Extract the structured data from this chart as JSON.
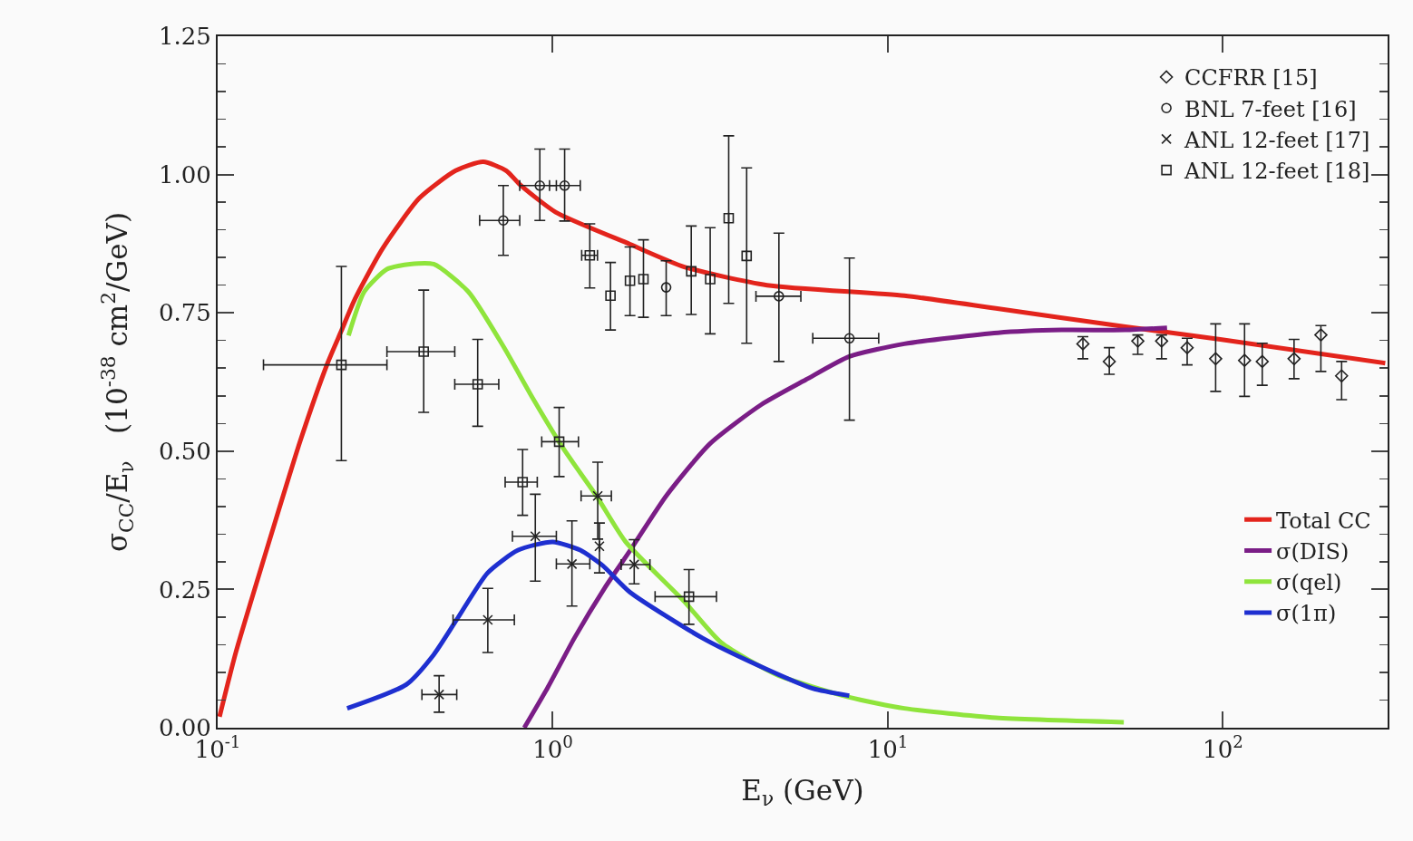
{
  "chart_data": {
    "type": "line",
    "xlabel": "E$_{ν}$ (GeV)",
    "ylabel": "σ$_{CC}$/E$_{ν}$   (10$^{-38}$ cm$^{2}$/GeV)",
    "log": "x",
    "grid": false,
    "legend": "right",
    "line_style": "solid",
    "xlim": [
      0.1,
      310
    ],
    "xticks": [
      {
        "value": 0.1,
        "label": "10$^{-1}$"
      },
      {
        "value": 1,
        "label": "10$^{0}$"
      },
      {
        "value": 10,
        "label": "10$^{1}$"
      },
      {
        "value": 100,
        "label": "10$^{2}$"
      }
    ],
    "ylim": [
      0,
      1.25
    ],
    "yticks": [
      {
        "value": 0,
        "label": "0.00"
      },
      0.25,
      {
        "value": 0.5,
        "label": "0.50"
      },
      0.75,
      {
        "value": 1,
        "label": "1.00"
      },
      1.25
    ],
    "series": [
      {
        "type": "scatter",
        "name": "CCFRR [15]",
        "color": "#222222",
        "marker": "diamond",
        "x": [
          38.2,
          45.8,
          55.7,
          65.6,
          78.2,
          95.1,
          116,
          131,
          163,
          196,
          226
        ],
        "values": [
          0.694,
          0.662,
          0.699,
          0.699,
          0.687,
          0.667,
          0.664,
          0.662,
          0.667,
          0.71,
          0.636
        ],
        "errors": [
          [
            0.667,
            0.707
          ],
          [
            0.639,
            0.687
          ],
          [
            0.675,
            0.71
          ],
          [
            0.667,
            0.71
          ],
          [
            0.656,
            0.704
          ],
          [
            0.608,
            0.73
          ],
          [
            0.599,
            0.73
          ],
          [
            0.619,
            0.695
          ],
          [
            0.631,
            0.702
          ],
          [
            0.644,
            0.727
          ],
          [
            0.593,
            0.662
          ]
        ]
      },
      {
        "type": "scatter",
        "name": "BNL 7-feet [16]",
        "color": "#222222",
        "marker": "circle",
        "x": [
          0.712,
          0.915,
          1.085,
          2.18,
          4.73,
          7.68
        ],
        "values": [
          0.917,
          0.98,
          0.98,
          0.796,
          0.78,
          0.704
        ],
        "errors": [
          [
            0.854,
            0.98
          ],
          [
            0.917,
            1.046
          ],
          [
            0.916,
            1.046
          ],
          [
            0.745,
            0.844
          ],
          [
            0.662,
            0.894
          ],
          [
            0.556,
            0.849
          ]
        ],
        "xerrors": [
          [
            0.605,
            0.797
          ],
          [
            0.797,
            1.025
          ],
          [
            0.978,
            1.208
          ],
          null,
          [
            4.04,
            5.5
          ],
          [
            5.97,
            9.39
          ]
        ]
      },
      {
        "type": "scatter",
        "name": "ANL 12-feet [17]",
        "color": "#222222",
        "marker": "cross",
        "x": [
          0.458,
          0.64,
          0.887,
          1.141,
          1.362,
          1.378,
          1.75
        ],
        "values": [
          0.06,
          0.195,
          0.346,
          0.296,
          0.419,
          0.328,
          0.295
        ],
        "errors": [
          [
            0.028,
            0.094
          ],
          [
            0.136,
            0.252
          ],
          [
            0.265,
            0.422
          ],
          [
            0.22,
            0.374
          ],
          [
            0.341,
            0.48
          ],
          [
            0.28,
            0.37
          ],
          [
            0.26,
            0.34
          ]
        ],
        "xerrors": [
          [
            0.407,
            0.517
          ],
          [
            0.504,
            0.768
          ],
          [
            0.758,
            1.025
          ],
          [
            1.025,
            1.29
          ],
          [
            1.215,
            1.496
          ],
          null,
          [
            1.6,
            1.95
          ]
        ]
      },
      {
        "type": "scatter",
        "name": "ANL 12-feet [18]",
        "color": "#222222",
        "marker": "square",
        "x": [
          0.234,
          0.412,
          0.597,
          0.813,
          1.045,
          1.29,
          1.487,
          1.7,
          1.865,
          2.55,
          2.59,
          2.95,
          3.35,
          3.79
        ],
        "values": [
          0.656,
          0.68,
          0.621,
          0.444,
          0.517,
          0.854,
          0.781,
          0.808,
          0.811,
          0.237,
          0.825,
          0.811,
          0.921,
          0.853
        ],
        "errors": [
          [
            0.483,
            0.834
          ],
          [
            0.57,
            0.791
          ],
          [
            0.545,
            0.702
          ],
          [
            0.384,
            0.503
          ],
          [
            0.454,
            0.579
          ],
          [
            0.795,
            0.911
          ],
          [
            0.719,
            0.841
          ],
          [
            0.745,
            0.869
          ],
          [
            0.742,
            0.882
          ],
          [
            0.187,
            0.286
          ],
          [
            0.747,
            0.907
          ],
          [
            0.712,
            0.904
          ],
          [
            0.767,
            1.07
          ],
          [
            0.695,
            1.012
          ]
        ],
        "xerrors": [
          [
            0.137,
            0.32
          ],
          [
            0.32,
            0.51
          ],
          [
            0.51,
            0.69
          ],
          [
            0.721,
            0.899
          ],
          [
            0.927,
            1.193
          ],
          [
            1.22,
            1.36
          ],
          null,
          null,
          null,
          [
            2.02,
            3.08
          ],
          null,
          null,
          null,
          null
        ]
      },
      {
        "name": "Total CC",
        "color": "#e3241c",
        "x": [
          0.1013,
          0.1134,
          0.137,
          0.1763,
          0.2128,
          0.2338,
          0.2569,
          0.3104,
          0.3994,
          0.513,
          0.62,
          0.7263,
          0.7975,
          1.02,
          1.7,
          2.47,
          4.36,
          11.2,
          21.0,
          51.1,
          98.2,
          305
        ],
        "values": [
          0.02,
          0.137,
          0.303,
          0.518,
          0.659,
          0.717,
          0.775,
          0.866,
          0.957,
          1.007,
          1.023,
          1.007,
          0.982,
          0.932,
          0.874,
          0.833,
          0.8,
          0.781,
          0.758,
          0.725,
          0.702,
          0.659
        ]
      },
      {
        "name": "σ(DIS)",
        "color": "#7a1d86",
        "x": [
          0.8222,
          0.9626,
          1.16,
          1.43,
          1.7,
          2.18,
          2.94,
          4.19,
          5.69,
          7.67,
          11.2,
          21.3,
          33.0,
          51.1,
          68.1
        ],
        "values": [
          0,
          0.071,
          0.162,
          0.253,
          0.32,
          0.419,
          0.513,
          0.584,
          0.629,
          0.671,
          0.694,
          0.714,
          0.719,
          0.719,
          0.723
        ]
      },
      {
        "name": "σ(qel)",
        "color": "#8fe43c",
        "x": [
          0.2458,
          0.2737,
          0.32,
          0.3746,
          0.4413,
          0.5601,
          0.7111,
          0.8767,
          1.08,
          1.35,
          1.65,
          2.47,
          3.18,
          4.65,
          7.67,
          11.2,
          21.0,
          50.6
        ],
        "values": [
          0.709,
          0.788,
          0.829,
          0.838,
          0.838,
          0.788,
          0.69,
          0.593,
          0.503,
          0.419,
          0.336,
          0.228,
          0.154,
          0.096,
          0.055,
          0.035,
          0.018,
          0.01
        ]
      },
      {
        "name": "σ(1π)",
        "color": "#1e2fd0",
        "x": [
          0.2435,
          0.3655,
          0.4413,
          0.5165,
          0.6393,
          0.7879,
          1.0,
          1.208,
          1.41,
          1.7,
          2.8,
          4.09,
          5.96,
          7.67
        ],
        "values": [
          0.035,
          0.078,
          0.132,
          0.195,
          0.28,
          0.321,
          0.336,
          0.321,
          0.293,
          0.245,
          0.162,
          0.113,
          0.071,
          0.058
        ]
      }
    ]
  }
}
